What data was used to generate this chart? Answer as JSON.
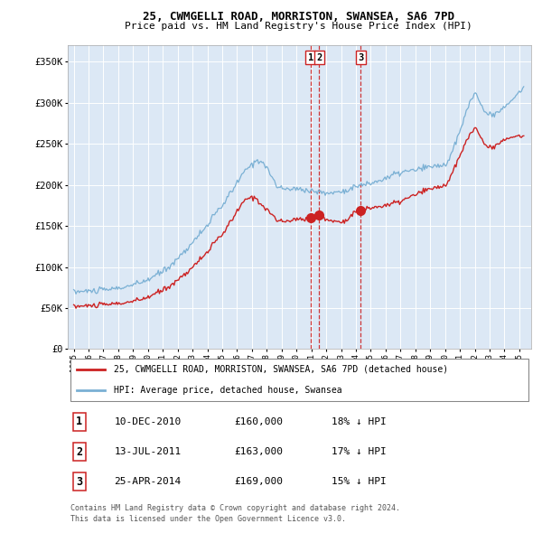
{
  "title1": "25, CWMGELLI ROAD, MORRISTON, SWANSEA, SA6 7PD",
  "title2": "Price paid vs. HM Land Registry's House Price Index (HPI)",
  "ylim": [
    0,
    370000
  ],
  "yticks": [
    0,
    50000,
    100000,
    150000,
    200000,
    250000,
    300000,
    350000
  ],
  "ytick_labels": [
    "£0",
    "£50K",
    "£100K",
    "£150K",
    "£200K",
    "£250K",
    "£300K",
    "£350K"
  ],
  "plot_bg_color": "#dce8f5",
  "grid_color": "#ffffff",
  "hpi_color": "#7ab0d4",
  "price_color": "#cc2222",
  "vline_color": "#cc2222",
  "legend_label_price": "25, CWMGELLI ROAD, MORRISTON, SWANSEA, SA6 7PD (detached house)",
  "legend_label_hpi": "HPI: Average price, detached house, Swansea",
  "sale1_date": 2010.94,
  "sale1_price": 160000,
  "sale1_label": "1",
  "sale2_date": 2011.53,
  "sale2_price": 163000,
  "sale2_label": "2",
  "sale3_date": 2014.32,
  "sale3_price": 169000,
  "sale3_label": "3",
  "annotation_rows": [
    [
      "1",
      "10-DEC-2010",
      "£160,000",
      "18% ↓ HPI"
    ],
    [
      "2",
      "13-JUL-2011",
      "£163,000",
      "17% ↓ HPI"
    ],
    [
      "3",
      "25-APR-2014",
      "£169,000",
      "15% ↓ HPI"
    ]
  ],
  "footer": "Contains HM Land Registry data © Crown copyright and database right 2024.\nThis data is licensed under the Open Government Licence v3.0."
}
